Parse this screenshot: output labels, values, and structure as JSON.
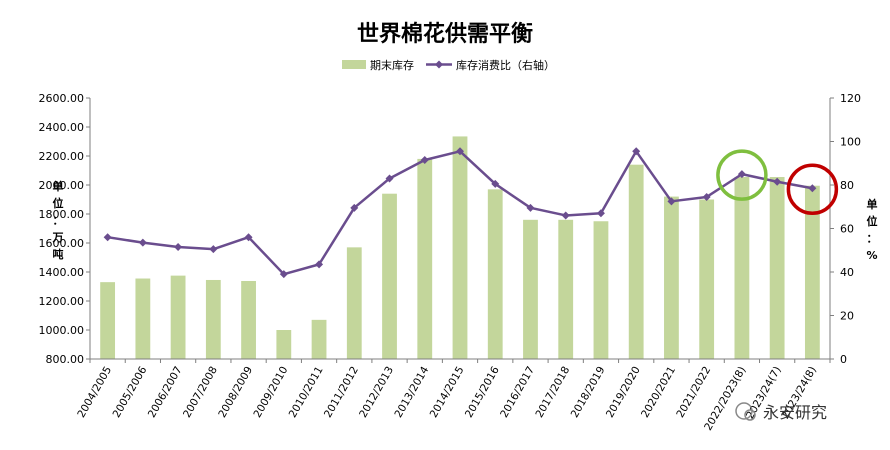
{
  "chart_data": {
    "type": "bar+line",
    "title": "世界棉花供需平衡",
    "categories": [
      "2004/2005",
      "2005/2006",
      "2006/2007",
      "2007/2008",
      "2008/2009",
      "2009/2010",
      "2010/2011",
      "2011/2012",
      "2012/2013",
      "2013/2014",
      "2014/2015",
      "2015/2016",
      "2016/2017",
      "2017/2018",
      "2018/2019",
      "2019/2020",
      "2020/2021",
      "2021/2022",
      "2022/2023(8)",
      "2023/24(7)",
      "2023/24(8)"
    ],
    "series": [
      {
        "name": "期末库存",
        "type": "bar",
        "axis": "left",
        "color": "#c3d69b",
        "values": [
          1330,
          1355,
          1375,
          1345,
          1338,
          1000,
          1070,
          1570,
          1940,
          2180,
          2335,
          1970,
          1760,
          1760,
          1750,
          2140,
          1920,
          1900,
          2055,
          2055,
          1995
        ]
      },
      {
        "name": "库存消费比（右轴）",
        "type": "line",
        "axis": "right",
        "color": "#6a4d8e",
        "values": [
          56,
          53.5,
          51.5,
          50.5,
          56,
          39,
          43.5,
          69.5,
          83,
          91.5,
          95.5,
          80.5,
          69.5,
          66,
          67,
          95.5,
          72.5,
          74.5,
          85,
          81.5,
          78.5
        ]
      }
    ],
    "y_left": {
      "min": 800,
      "max": 2600,
      "step": 200,
      "unit_label": [
        "单",
        "位",
        "：",
        "万",
        "吨"
      ]
    },
    "y_right": {
      "min": 0,
      "max": 120,
      "step": 20,
      "unit_label": [
        "单",
        "位",
        "：",
        "%"
      ]
    },
    "grid": false,
    "legend_position": "top",
    "highlights": [
      {
        "category_index": 18,
        "color": "#7fbf3f"
      },
      {
        "category_index": 20,
        "color": "#c00000"
      }
    ]
  },
  "watermark": "永安研究"
}
